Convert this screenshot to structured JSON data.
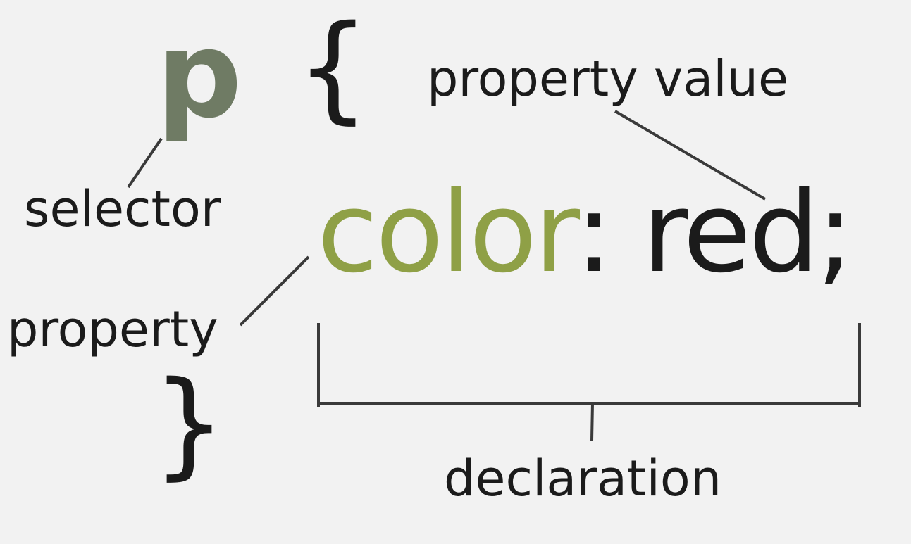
{
  "rule": {
    "selector": "p",
    "open_brace": "{",
    "close_brace": "}",
    "declaration": {
      "property": "color",
      "colon": ":",
      "value": "red",
      "semicolon": ";"
    }
  },
  "labels": {
    "selector": "selector",
    "property": "property",
    "property_value": "property value",
    "declaration": "declaration"
  },
  "colors": {
    "background": "#f2f2f2",
    "selector": "#6f7b64",
    "property": "#8fa046",
    "text": "#1b1b1b",
    "leader_lines": "#3a3a3a"
  }
}
